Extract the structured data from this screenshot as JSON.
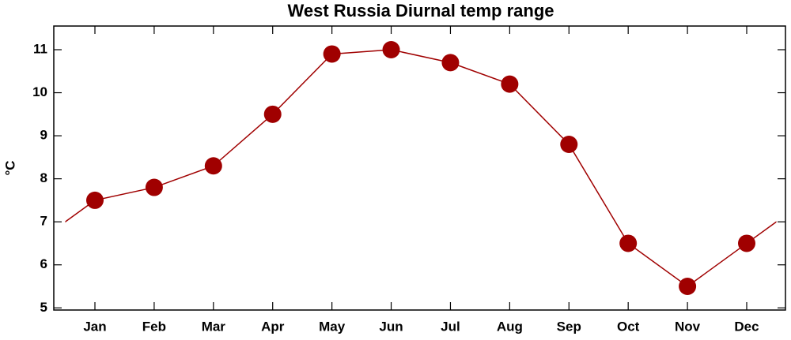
{
  "chart_data": {
    "type": "line",
    "title": "West Russia Diurnal temp range",
    "y_label": "°C",
    "categories": [
      "Jan",
      "Feb",
      "Mar",
      "Apr",
      "May",
      "Jun",
      "Jul",
      "Aug",
      "Sep",
      "Oct",
      "Nov",
      "Dec"
    ],
    "values": [
      7.5,
      7.8,
      8.3,
      9.5,
      10.9,
      11.0,
      10.7,
      10.2,
      8.8,
      6.5,
      5.5,
      6.5
    ],
    "color": "#a00000",
    "ylim": [
      4.95,
      11.55
    ],
    "yticks": [
      5,
      6,
      7,
      8,
      9,
      10,
      11
    ],
    "wrap": true
  }
}
